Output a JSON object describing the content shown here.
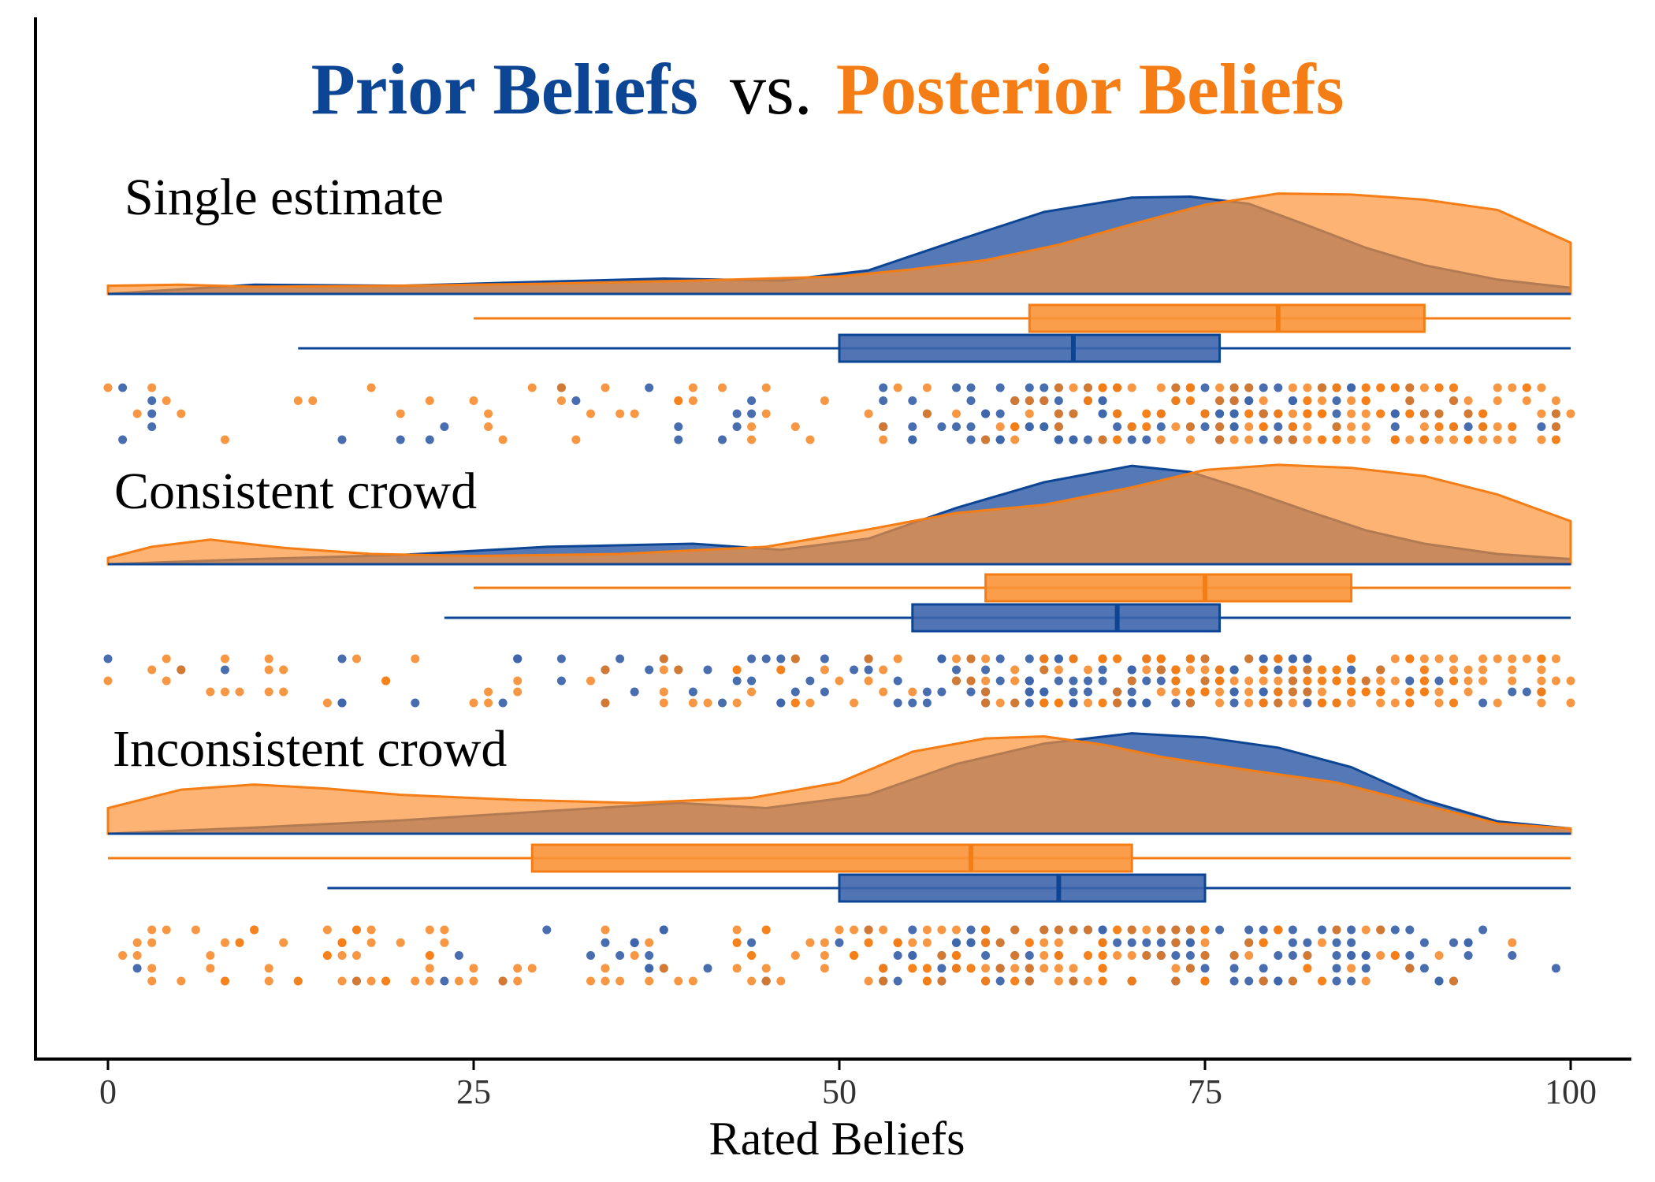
{
  "title": {
    "prior": "Prior Beliefs",
    "vs": "vs.",
    "posterior": "Posterior Beliefs"
  },
  "colors": {
    "prior": "#0d4595",
    "prior_fill": "#3e66ac",
    "posterior": "#f57d15",
    "posterior_fill": "#fb9338",
    "axis": "#000000",
    "tick_text": "#333333"
  },
  "chart_data": {
    "type": "raincloud",
    "xlabel": "Rated Beliefs",
    "xlim": [
      0,
      100
    ],
    "x_ticks": [
      0,
      25,
      50,
      75,
      100
    ],
    "x_tick_labels": [
      "0",
      "25",
      "50",
      "75",
      "100"
    ],
    "grid": false,
    "legend": "title-colored",
    "series_names": [
      "Prior Beliefs",
      "Posterior Beliefs"
    ],
    "groups": [
      {
        "label": "Single estimate",
        "prior": {
          "box": {
            "whisker_low": 13,
            "q1": 50,
            "median": 66,
            "q3": 76,
            "whisker_high": 100
          },
          "density": [
            [
              0,
              0
            ],
            [
              10,
              0.09
            ],
            [
              20,
              0.08
            ],
            [
              30,
              0.12
            ],
            [
              38,
              0.15
            ],
            [
              46,
              0.13
            ],
            [
              52,
              0.23
            ],
            [
              58,
              0.52
            ],
            [
              64,
              0.8
            ],
            [
              70,
              0.94
            ],
            [
              74,
              0.95
            ],
            [
              78,
              0.88
            ],
            [
              82,
              0.67
            ],
            [
              86,
              0.45
            ],
            [
              90,
              0.28
            ],
            [
              95,
              0.14
            ],
            [
              100,
              0.06
            ]
          ]
        },
        "posterior": {
          "box": {
            "whisker_low": 25,
            "q1": 63,
            "median": 80,
            "q3": 90,
            "whisker_high": 100
          },
          "density": [
            [
              0,
              0.08
            ],
            [
              5,
              0.09
            ],
            [
              10,
              0.07
            ],
            [
              20,
              0.08
            ],
            [
              30,
              0.1
            ],
            [
              40,
              0.13
            ],
            [
              50,
              0.17
            ],
            [
              55,
              0.24
            ],
            [
              60,
              0.33
            ],
            [
              65,
              0.48
            ],
            [
              70,
              0.68
            ],
            [
              75,
              0.87
            ],
            [
              80,
              0.98
            ],
            [
              85,
              0.97
            ],
            [
              90,
              0.92
            ],
            [
              95,
              0.82
            ],
            [
              100,
              0.5
            ]
          ]
        },
        "points": {
          "prior_n": 150,
          "posterior_n": 220
        }
      },
      {
        "label": "Consistent crowd",
        "prior": {
          "box": {
            "whisker_low": 23,
            "q1": 55,
            "median": 69,
            "q3": 76,
            "whisker_high": 100
          },
          "density": [
            [
              0,
              0
            ],
            [
              10,
              0.05
            ],
            [
              20,
              0.09
            ],
            [
              30,
              0.17
            ],
            [
              40,
              0.2
            ],
            [
              46,
              0.14
            ],
            [
              52,
              0.25
            ],
            [
              58,
              0.55
            ],
            [
              64,
              0.8
            ],
            [
              70,
              0.96
            ],
            [
              74,
              0.9
            ],
            [
              78,
              0.72
            ],
            [
              82,
              0.52
            ],
            [
              86,
              0.33
            ],
            [
              90,
              0.2
            ],
            [
              95,
              0.1
            ],
            [
              100,
              0.05
            ]
          ]
        },
        "posterior": {
          "box": {
            "whisker_low": 25,
            "q1": 60,
            "median": 75,
            "q3": 85,
            "whisker_high": 100
          },
          "density": [
            [
              0,
              0.06
            ],
            [
              3,
              0.17
            ],
            [
              7,
              0.24
            ],
            [
              12,
              0.16
            ],
            [
              18,
              0.1
            ],
            [
              25,
              0.08
            ],
            [
              35,
              0.1
            ],
            [
              45,
              0.17
            ],
            [
              52,
              0.34
            ],
            [
              58,
              0.5
            ],
            [
              64,
              0.58
            ],
            [
              70,
              0.75
            ],
            [
              75,
              0.92
            ],
            [
              80,
              0.97
            ],
            [
              85,
              0.94
            ],
            [
              90,
              0.86
            ],
            [
              95,
              0.68
            ],
            [
              100,
              0.42
            ]
          ]
        },
        "points": {
          "prior_n": 160,
          "posterior_n": 240
        }
      },
      {
        "label": "Inconsistent crowd",
        "prior": {
          "box": {
            "whisker_low": 15,
            "q1": 50,
            "median": 65,
            "q3": 75,
            "whisker_high": 100
          },
          "density": [
            [
              0,
              0
            ],
            [
              10,
              0.06
            ],
            [
              20,
              0.13
            ],
            [
              30,
              0.22
            ],
            [
              39,
              0.3
            ],
            [
              45,
              0.25
            ],
            [
              52,
              0.38
            ],
            [
              58,
              0.68
            ],
            [
              64,
              0.88
            ],
            [
              70,
              0.98
            ],
            [
              75,
              0.94
            ],
            [
              80,
              0.84
            ],
            [
              85,
              0.65
            ],
            [
              90,
              0.33
            ],
            [
              95,
              0.12
            ],
            [
              100,
              0.05
            ]
          ]
        },
        "posterior": {
          "box": {
            "whisker_low": 0,
            "q1": 29,
            "median": 59,
            "q3": 70,
            "whisker_high": 100
          },
          "density": [
            [
              0,
              0.25
            ],
            [
              5,
              0.43
            ],
            [
              10,
              0.48
            ],
            [
              15,
              0.44
            ],
            [
              20,
              0.38
            ],
            [
              28,
              0.33
            ],
            [
              36,
              0.3
            ],
            [
              44,
              0.35
            ],
            [
              50,
              0.5
            ],
            [
              55,
              0.8
            ],
            [
              60,
              0.93
            ],
            [
              64,
              0.95
            ],
            [
              68,
              0.87
            ],
            [
              72,
              0.75
            ],
            [
              78,
              0.62
            ],
            [
              84,
              0.5
            ],
            [
              90,
              0.28
            ],
            [
              95,
              0.1
            ],
            [
              100,
              0.05
            ]
          ]
        },
        "points": {
          "prior_n": 150,
          "posterior_n": 220
        }
      }
    ]
  }
}
